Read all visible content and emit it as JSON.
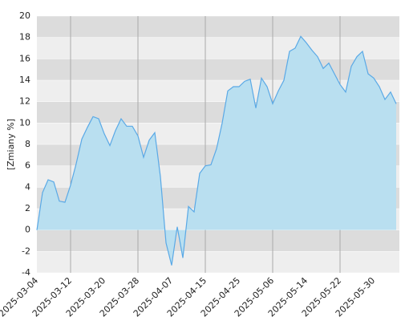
{
  "chart_data": {
    "type": "area",
    "y_label": "[Zmiany %]",
    "categories": [
      "2025-03-04",
      null,
      null,
      null,
      null,
      null,
      "2025-03-12",
      null,
      null,
      null,
      null,
      null,
      "2025-03-20",
      null,
      null,
      null,
      null,
      null,
      "2025-03-28",
      null,
      null,
      null,
      null,
      null,
      "2025-04-07",
      null,
      null,
      null,
      null,
      null,
      "2025-04-15",
      null,
      null,
      null,
      null,
      null,
      "2025-04-25",
      null,
      null,
      null,
      null,
      null,
      "2025-05-06",
      null,
      null,
      null,
      null,
      null,
      "2025-05-14",
      null,
      null,
      null,
      null,
      null,
      "2025-05-22",
      null,
      null,
      null,
      null,
      null,
      "2025-05-30",
      null,
      null,
      null,
      null
    ],
    "values": [
      0,
      3.5,
      4.7,
      4.5,
      2.7,
      2.6,
      4.2,
      6.2,
      8.5,
      9.6,
      10.6,
      10.4,
      9.0,
      7.9,
      9.3,
      10.4,
      9.7,
      9.7,
      8.8,
      6.8,
      8.4,
      9.1,
      5.0,
      -1.2,
      -3.3,
      0.3,
      -2.6,
      2.2,
      1.7,
      5.3,
      6.0,
      6.1,
      7.6,
      10.0,
      13.0,
      13.4,
      13.4,
      13.9,
      14.1,
      11.4,
      14.2,
      13.4,
      11.8,
      13.0,
      14.0,
      16.7,
      17.0,
      18.1,
      17.5,
      16.8,
      16.2,
      15.1,
      15.6,
      14.6,
      13.6,
      12.9,
      15.3,
      16.2,
      16.7,
      14.6,
      14.2,
      13.4,
      12.2,
      12.9,
      11.8
    ],
    "color": "#5aa9e6",
    "fill": "#b9dff0",
    "ylim": [
      -4,
      20
    ],
    "yticks": [
      -4,
      -2,
      0,
      2,
      4,
      6,
      8,
      10,
      12,
      14,
      16,
      18,
      20
    ],
    "grid": true
  }
}
